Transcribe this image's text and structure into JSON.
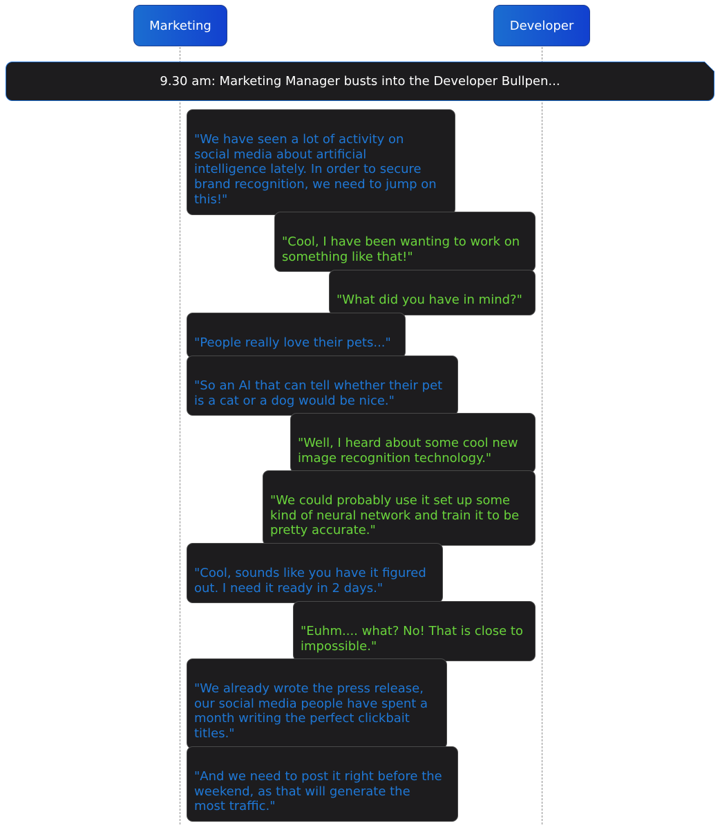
{
  "participants": {
    "marketing": "Marketing",
    "developer": "Developer"
  },
  "note": "9.30 am: Marketing Manager busts into the Developer Bullpen...",
  "messages": [
    {
      "from": "Marketing",
      "text": "\"We have seen a lot of activity on\nsocial media about artificial\nintelligence lately. In order to secure\nbrand recognition, we need to jump on\nthis!\""
    },
    {
      "from": "Developer",
      "text": "\"Cool, I have been wanting to work on\nsomething like that!\""
    },
    {
      "from": "Developer",
      "text": "\"What did you have in mind?\""
    },
    {
      "from": "Marketing",
      "text": "\"People really love their pets...\""
    },
    {
      "from": "Marketing",
      "text": "\"So an AI that can tell whether their pet\nis a cat or a dog would be nice.\""
    },
    {
      "from": "Developer",
      "text": "\"Well, I heard about some cool new\nimage recognition technology.\""
    },
    {
      "from": "Developer",
      "text": "\"We could probably use it set up some\nkind of neural network and train it to be\npretty accurate.\""
    },
    {
      "from": "Marketing",
      "text": "\"Cool, sounds like you have it figured\nout. I need it ready in 2 days.\""
    },
    {
      "from": "Developer",
      "text": "\"Euhm.... what? No! That is close to\nimpossible.\""
    },
    {
      "from": "Marketing",
      "text": "\"We already wrote the press release,\nour social media people have spent a\nmonth writing the perfect clickbait\ntitles.\""
    },
    {
      "from": "Marketing",
      "text": "\"And we need to post it right before the\nweekend, as that will generate the\nmost traffic.\""
    }
  ],
  "colors": {
    "marketing_text": "#1f78d6",
    "developer_text": "#6ad43c",
    "bubble_bg": "#1d1c1e"
  }
}
